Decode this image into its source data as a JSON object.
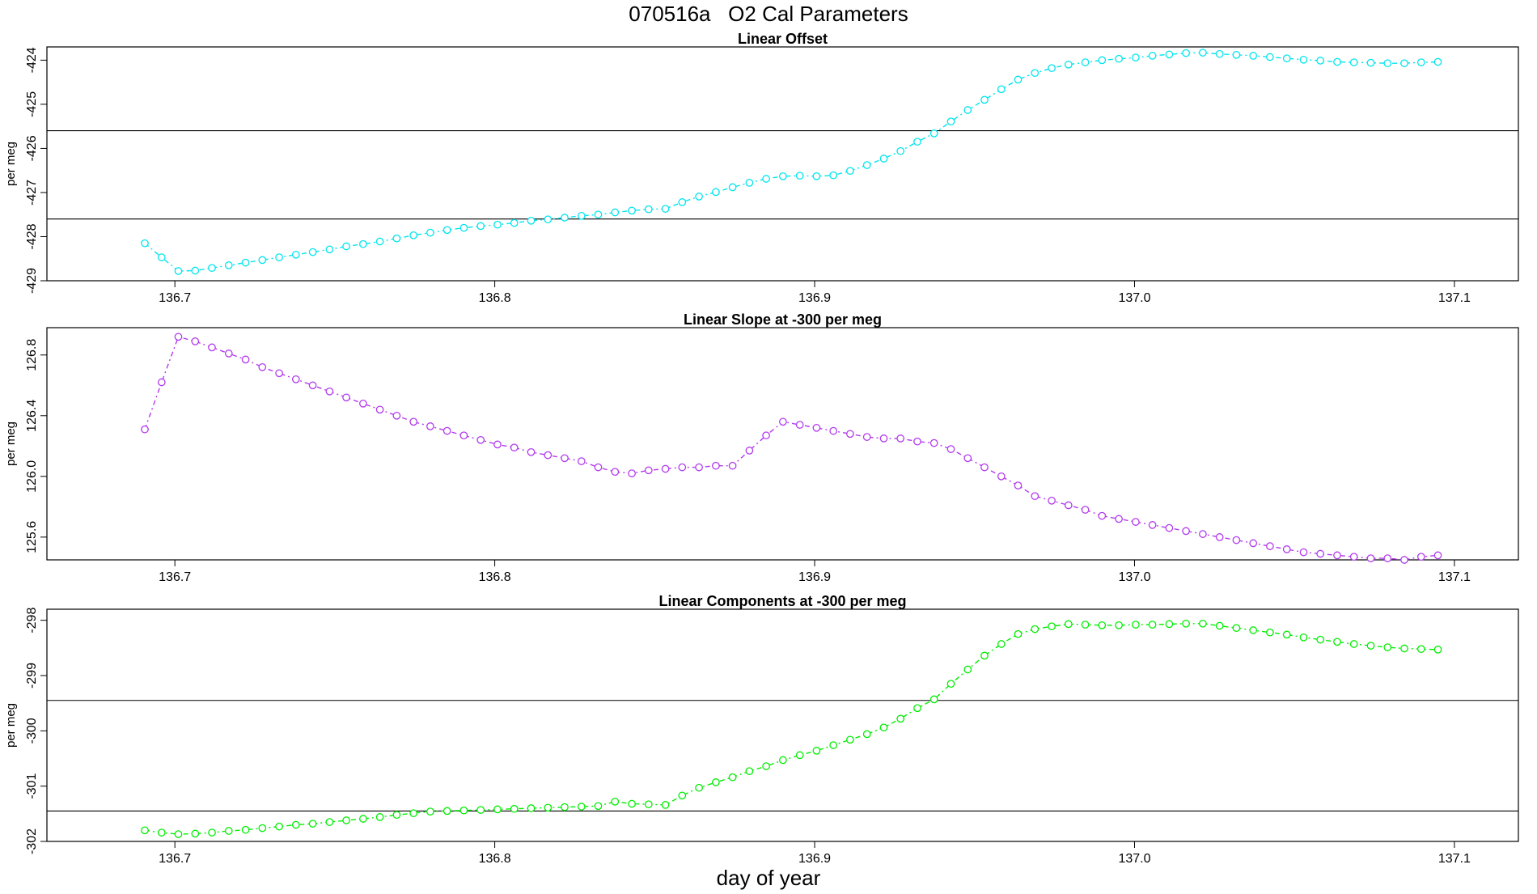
{
  "figure": {
    "title": "070516a   O2 Cal Parameters",
    "xlabel": "day of year"
  },
  "chart_data": [
    {
      "type": "line",
      "title": "Linear Offset",
      "ylabel": "per meg",
      "xlabel": "",
      "xlim": [
        136.66,
        137.12
      ],
      "ylim": [
        -429.0,
        -423.7
      ],
      "xticks": [
        136.7,
        136.8,
        136.9,
        137.0,
        137.1
      ],
      "xtick_labels": [
        "136.7",
        "136.8",
        "136.9",
        "137.0",
        "137.1"
      ],
      "yticks": [
        -429,
        -428,
        -427,
        -426,
        -425,
        -424
      ],
      "ytick_labels": [
        "-429",
        "-428",
        "-427",
        "-426",
        "-425",
        "-424"
      ],
      "hlines": [
        -425.6,
        -427.6
      ],
      "color": "#00e5ee",
      "x_start": 136.6906,
      "x_step": 0.00525,
      "values": [
        -428.15,
        -428.47,
        -428.78,
        -428.77,
        -428.71,
        -428.65,
        -428.59,
        -428.53,
        -428.47,
        -428.41,
        -428.35,
        -428.29,
        -428.22,
        -428.17,
        -428.11,
        -428.04,
        -427.97,
        -427.91,
        -427.85,
        -427.8,
        -427.76,
        -427.73,
        -427.69,
        -427.64,
        -427.61,
        -427.57,
        -427.53,
        -427.5,
        -427.45,
        -427.41,
        -427.38,
        -427.37,
        -427.22,
        -427.09,
        -426.99,
        -426.88,
        -426.78,
        -426.69,
        -426.63,
        -426.62,
        -426.63,
        -426.61,
        -426.51,
        -426.38,
        -426.23,
        -426.06,
        -425.85,
        -425.66,
        -425.39,
        -425.13,
        -424.9,
        -424.66,
        -424.44,
        -424.29,
        -424.18,
        -424.1,
        -424.05,
        -424.0,
        -423.97,
        -423.94,
        -423.9,
        -423.87,
        -423.84,
        -423.83,
        -423.86,
        -423.88,
        -423.9,
        -423.93,
        -423.96,
        -423.99,
        -424.01,
        -424.04,
        -424.05,
        -424.06,
        -424.07,
        -424.07,
        -424.05,
        -424.04
      ]
    },
    {
      "type": "line",
      "title": "Linear Slope at -300 per meg",
      "ylabel": "per meg",
      "xlabel": "",
      "xlim": [
        136.66,
        137.12
      ],
      "ylim": [
        125.45,
        126.98
      ],
      "xticks": [
        136.7,
        136.8,
        136.9,
        137.0,
        137.1
      ],
      "xtick_labels": [
        "136.7",
        "136.8",
        "136.9",
        "137.0",
        "137.1"
      ],
      "yticks": [
        125.6,
        126.0,
        126.4,
        126.8
      ],
      "ytick_labels": [
        "125.6",
        "126.0",
        "126.4",
        "126.8"
      ],
      "hlines": [],
      "color": "#b23aee",
      "x_start": 136.6906,
      "x_step": 0.00525,
      "values": [
        126.31,
        126.62,
        126.92,
        126.89,
        126.85,
        126.81,
        126.77,
        126.72,
        126.68,
        126.64,
        126.6,
        126.56,
        126.52,
        126.48,
        126.44,
        126.4,
        126.36,
        126.33,
        126.3,
        126.27,
        126.24,
        126.21,
        126.19,
        126.16,
        126.14,
        126.12,
        126.1,
        126.06,
        126.03,
        126.02,
        126.04,
        126.05,
        126.06,
        126.06,
        126.07,
        126.07,
        126.17,
        126.27,
        126.36,
        126.34,
        126.32,
        126.3,
        126.28,
        126.26,
        126.25,
        126.25,
        126.23,
        126.22,
        126.18,
        126.12,
        126.06,
        126.0,
        125.94,
        125.87,
        125.84,
        125.81,
        125.78,
        125.74,
        125.72,
        125.7,
        125.68,
        125.66,
        125.64,
        125.62,
        125.6,
        125.58,
        125.56,
        125.54,
        125.52,
        125.5,
        125.49,
        125.48,
        125.47,
        125.46,
        125.46,
        125.45,
        125.47,
        125.48
      ]
    },
    {
      "type": "line",
      "title": "Linear Components at -300 per meg",
      "ylabel": "per meg",
      "xlabel": "",
      "xlim": [
        136.66,
        137.12
      ],
      "ylim": [
        -302.0,
        -297.8
      ],
      "xticks": [
        136.7,
        136.8,
        136.9,
        137.0,
        137.1
      ],
      "xtick_labels": [
        "136.7",
        "136.8",
        "136.9",
        "137.0",
        "137.1"
      ],
      "yticks": [
        -302,
        -301,
        -300,
        -299,
        -298
      ],
      "ytick_labels": [
        "-302",
        "-301",
        "-300",
        "-299",
        "-298"
      ],
      "hlines": [
        -299.45,
        -301.45
      ],
      "color": "#00ee00",
      "x_start": 136.6906,
      "x_step": 0.00525,
      "values": [
        -301.8,
        -301.84,
        -301.87,
        -301.86,
        -301.84,
        -301.81,
        -301.79,
        -301.76,
        -301.73,
        -301.7,
        -301.68,
        -301.65,
        -301.62,
        -301.59,
        -301.56,
        -301.52,
        -301.49,
        -301.46,
        -301.45,
        -301.44,
        -301.43,
        -301.42,
        -301.41,
        -301.4,
        -301.39,
        -301.38,
        -301.37,
        -301.36,
        -301.28,
        -301.32,
        -301.33,
        -301.34,
        -301.17,
        -301.03,
        -300.93,
        -300.84,
        -300.73,
        -300.64,
        -300.53,
        -300.44,
        -300.36,
        -300.26,
        -300.16,
        -300.06,
        -299.94,
        -299.78,
        -299.59,
        -299.43,
        -299.15,
        -298.89,
        -298.64,
        -298.43,
        -298.25,
        -298.16,
        -298.11,
        -298.07,
        -298.08,
        -298.09,
        -298.09,
        -298.08,
        -298.08,
        -298.07,
        -298.06,
        -298.06,
        -298.1,
        -298.14,
        -298.18,
        -298.22,
        -298.26,
        -298.31,
        -298.35,
        -298.39,
        -298.43,
        -298.46,
        -298.49,
        -298.51,
        -298.52,
        -298.53
      ]
    }
  ]
}
